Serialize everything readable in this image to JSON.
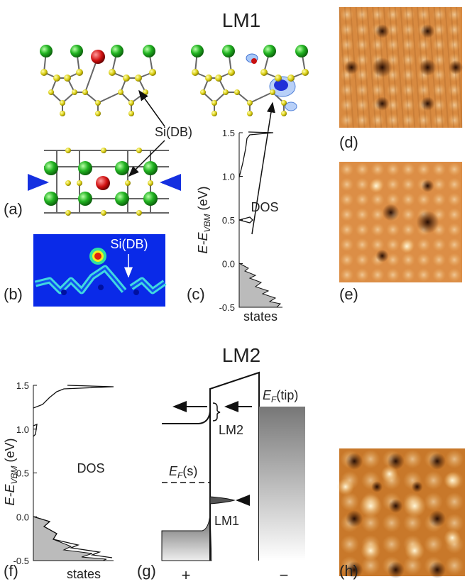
{
  "titles": {
    "lm1": "LM1",
    "lm2": "LM2"
  },
  "panel_labels": {
    "a": "(a)",
    "b": "(b)",
    "c": "(c)",
    "d": "(d)",
    "e": "(e)",
    "f": "(f)",
    "g": "(g)",
    "h": "(h)"
  },
  "annotations": {
    "si_db_a": "Si(DB)",
    "si_db_b": "Si(DB)",
    "lm1": "LM1",
    "lm2": "LM2",
    "plus": "+",
    "minus": "−",
    "ef_sample": {
      "main": "E",
      "sub": "F",
      "suffix": "(s)"
    },
    "ef_tip": {
      "main": "E",
      "sub": "F",
      "suffix": "(tip)"
    }
  },
  "dos_c": {
    "label": "DOS",
    "xlabel": "states",
    "ylabel": {
      "main": "E-E",
      "sub": "VBM",
      "suffix": " (eV)"
    },
    "yticks": [
      "1.5",
      "1.0",
      "0.5",
      "0.0",
      "-0.5"
    ]
  },
  "dos_f": {
    "label": "DOS",
    "xlabel": "states",
    "ylabel": {
      "main": "E-E",
      "sub": "VBM",
      "suffix": " (eV)"
    },
    "yticks": [
      "1.5",
      "1.0",
      "0.5",
      "0.0",
      "-0.5"
    ]
  }
}
